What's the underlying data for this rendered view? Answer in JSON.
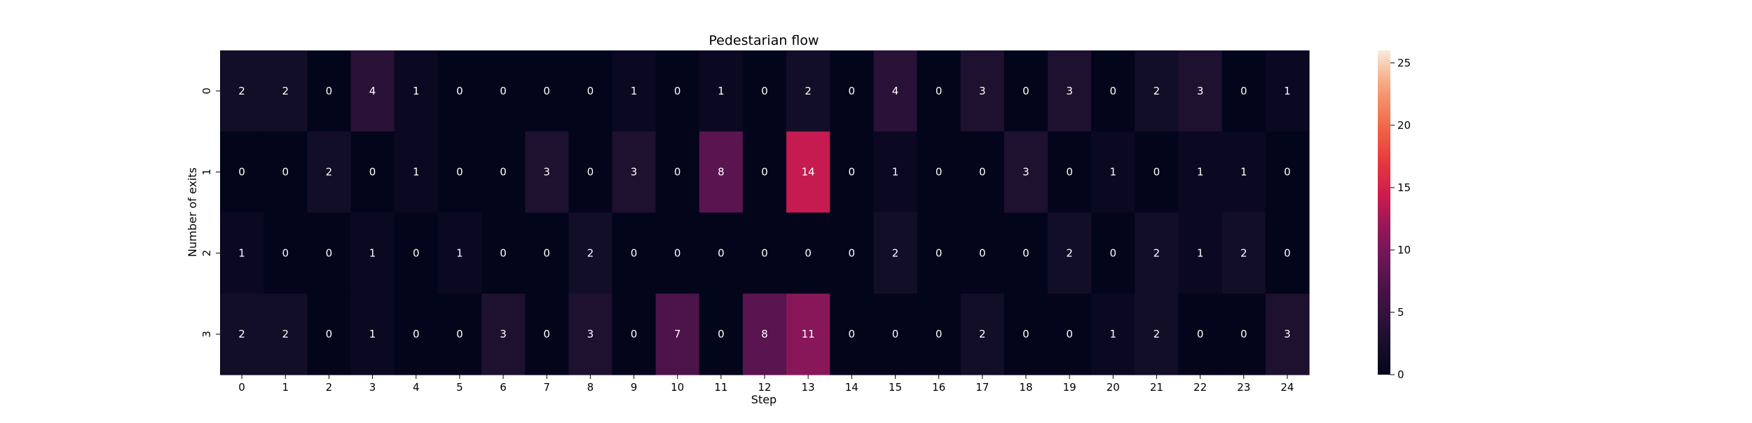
{
  "chart_data": {
    "type": "heatmap",
    "title": "Pedestarian flow",
    "xlabel": "Step",
    "ylabel": "Number of exits",
    "x_categories": [
      "0",
      "1",
      "2",
      "3",
      "4",
      "5",
      "6",
      "7",
      "8",
      "9",
      "10",
      "11",
      "12",
      "13",
      "14",
      "15",
      "16",
      "17",
      "18",
      "19",
      "20",
      "21",
      "22",
      "23",
      "24"
    ],
    "y_categories": [
      "0",
      "1",
      "2",
      "3"
    ],
    "values": [
      [
        2,
        2,
        0,
        4,
        1,
        0,
        0,
        0,
        0,
        1,
        0,
        1,
        0,
        2,
        0,
        4,
        0,
        3,
        0,
        3,
        0,
        2,
        3,
        0,
        1
      ],
      [
        0,
        0,
        2,
        0,
        1,
        0,
        0,
        3,
        0,
        3,
        0,
        8,
        0,
        14,
        0,
        1,
        0,
        0,
        3,
        0,
        1,
        0,
        1,
        1,
        0
      ],
      [
        1,
        0,
        0,
        1,
        0,
        1,
        0,
        0,
        2,
        0,
        0,
        0,
        0,
        0,
        0,
        2,
        0,
        0,
        0,
        2,
        0,
        2,
        1,
        2,
        0
      ],
      [
        2,
        2,
        0,
        1,
        0,
        0,
        3,
        0,
        3,
        0,
        7,
        0,
        8,
        11,
        0,
        0,
        0,
        2,
        0,
        0,
        1,
        2,
        0,
        0,
        3
      ]
    ],
    "color_range": [
      0,
      26
    ],
    "colorbar_ticks": [
      "0",
      "5",
      "10",
      "15",
      "20",
      "25"
    ],
    "colormap": "rocket"
  }
}
